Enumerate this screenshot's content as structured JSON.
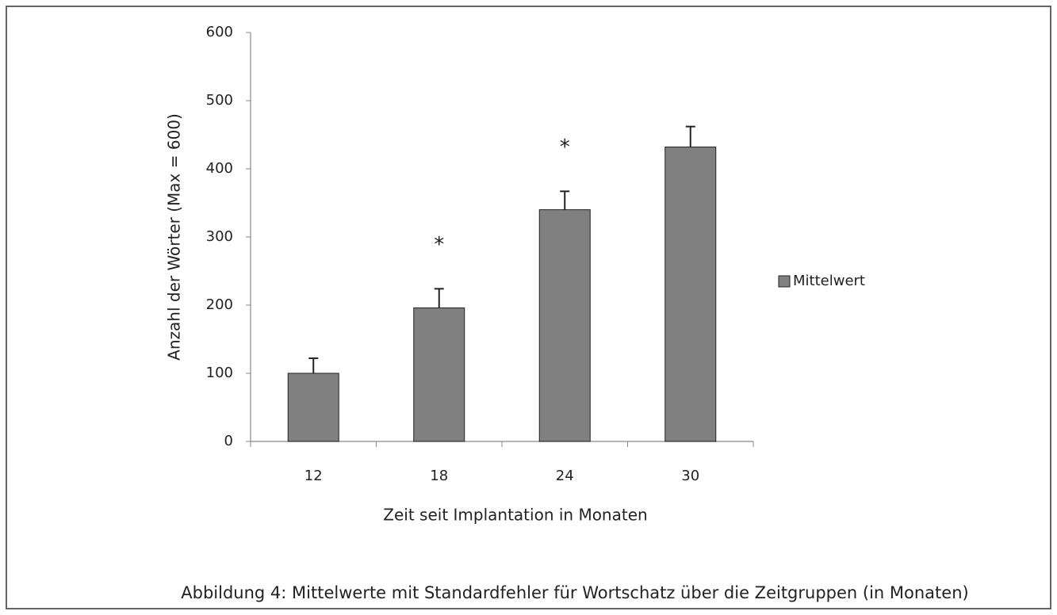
{
  "chart_data": {
    "type": "bar",
    "caption": "Abbildung 4:  Mittelwerte mit Standardfehler für Wortschatz über die Zeitgruppen (in Monaten)",
    "x_label": "Zeit seit Implantation  in Monaten",
    "y_label": "Anzahl der Wörter (Max = 600)",
    "categories": [
      "12",
      "18",
      "24",
      "30"
    ],
    "series": [
      {
        "name": "Mittelwert",
        "color": "#808080",
        "values": [
          100,
          196,
          340,
          432
        ],
        "errors": [
          22,
          28,
          27,
          30
        ]
      }
    ],
    "annotations": [
      {
        "text": "*",
        "x": 1
      },
      {
        "text": "*",
        "x": 2
      }
    ],
    "ylim": [
      0,
      600
    ],
    "yticks": [
      0,
      100,
      200,
      300,
      400,
      500,
      600
    ],
    "legend": "right",
    "grid": false
  }
}
